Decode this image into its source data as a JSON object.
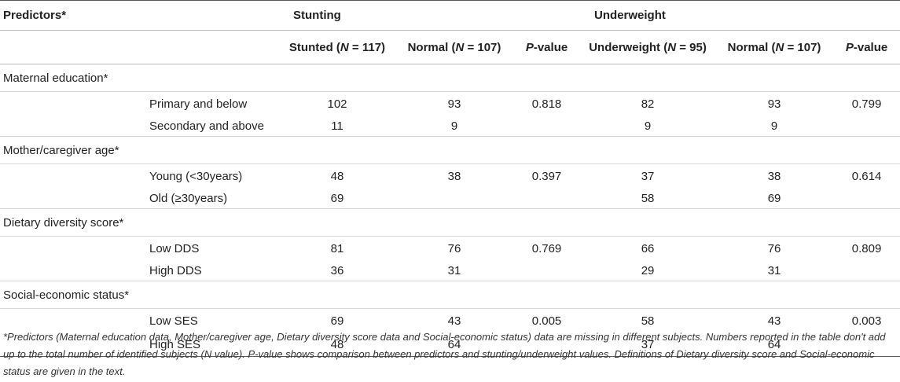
{
  "table": {
    "predictors_header": "Predictors*",
    "group_headers": [
      "Stunting",
      "Underweight"
    ],
    "columns": {
      "stunted_pre": "Stunted (",
      "stunted_n": "N",
      "stunted_post": " = 117)",
      "normal1_pre": "Normal (",
      "normal1_n": "N",
      "normal1_post": " = 107)",
      "p1_pre": "P",
      "p1_post": "-value",
      "under_pre": "Underweight (",
      "under_n": "N",
      "under_post": " = 95)",
      "normal2_pre": "Normal (",
      "normal2_n": "N",
      "normal2_post": " = 107)",
      "p2_pre": "P",
      "p2_post": "-value"
    },
    "groups": [
      {
        "label": "Maternal education*",
        "rows": [
          {
            "label": "Primary and below",
            "stunted": "102",
            "normal1": "93",
            "p1": "0.818",
            "under": "82",
            "normal2": "93",
            "p2": "0.799"
          },
          {
            "label": "Secondary and above",
            "stunted": "11",
            "normal1": "9",
            "p1": "",
            "under": "9",
            "normal2": "9",
            "p2": ""
          }
        ]
      },
      {
        "label": "Mother/caregiver age*",
        "rows": [
          {
            "label": "Young (<30years)",
            "stunted": "48",
            "normal1": "38",
            "p1": "0.397",
            "under": "37",
            "normal2": "38",
            "p2": "0.614"
          },
          {
            "label": "Old (≥30years)",
            "stunted": "69",
            "normal1": "",
            "p1": "",
            "under": "58",
            "normal2": "69",
            "p2": ""
          }
        ]
      },
      {
        "label": "Dietary diversity score*",
        "rows": [
          {
            "label": "Low DDS",
            "stunted": "81",
            "normal1": "76",
            "p1": "0.769",
            "under": "66",
            "normal2": "76",
            "p2": "0.809"
          },
          {
            "label": "High DDS",
            "stunted": "36",
            "normal1": "31",
            "p1": "",
            "under": "29",
            "normal2": "31",
            "p2": ""
          }
        ]
      },
      {
        "label": "Social-economic status*",
        "rows": [
          {
            "label": "Low SES",
            "stunted": "69",
            "normal1": "43",
            "p1": "0.005",
            "under": "58",
            "normal2": "43",
            "p2": "0.003"
          },
          {
            "label": "High SES",
            "stunted": "48",
            "normal1": "64",
            "p1": "",
            "under": "37",
            "normal2": "64",
            "p2": ""
          }
        ]
      }
    ],
    "footnote": "*Predictors (Maternal education data, Mother/caregiver age, Dietary diversity score data and Social-economic status) data are missing in different subjects. Numbers reported in the table don't add up to the total number of identified subjects (N value). P-value shows comparison between predictors and stunting/underweight values. Definitions of Dietary diversity score and Social-economic status are given in the text."
  }
}
